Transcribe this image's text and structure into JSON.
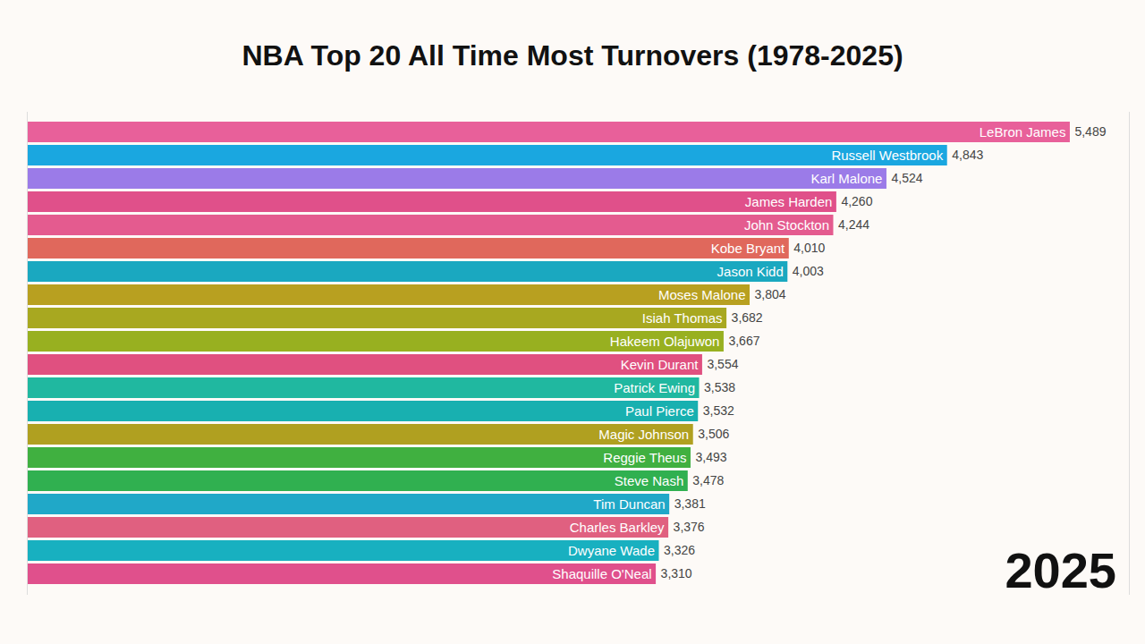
{
  "chart_data": {
    "type": "bar",
    "orientation": "horizontal",
    "title": "NBA Top 20 All Time Most Turnovers (1978-2025)",
    "annotations": [
      "2025"
    ],
    "categories": [
      "LeBron James",
      "Russell Westbrook",
      "Karl Malone",
      "James Harden",
      "John Stockton",
      "Kobe Bryant",
      "Jason Kidd",
      "Moses Malone",
      "Isiah Thomas",
      "Hakeem Olajuwon",
      "Kevin Durant",
      "Patrick Ewing",
      "Paul Pierce",
      "Magic Johnson",
      "Reggie Theus",
      "Steve Nash",
      "Tim Duncan",
      "Charles Barkley",
      "Dwyane Wade",
      "Shaquille O'Neal"
    ],
    "values": [
      5489,
      4843,
      4524,
      4260,
      4244,
      4010,
      4003,
      3804,
      3682,
      3667,
      3554,
      3538,
      3532,
      3506,
      3493,
      3478,
      3381,
      3376,
      3326,
      3310
    ],
    "value_labels": [
      "5,489",
      "4,843",
      "4,524",
      "4,260",
      "4,244",
      "4,010",
      "4,003",
      "3,804",
      "3,682",
      "3,667",
      "3,554",
      "3,538",
      "3,532",
      "3,506",
      "3,493",
      "3,478",
      "3,381",
      "3,376",
      "3,326",
      "3,310"
    ],
    "colors": [
      "#e8609a",
      "#1aa7e0",
      "#9b7be8",
      "#e0508a",
      "#e45b8f",
      "#e0685c",
      "#1aa8c0",
      "#b8a020",
      "#a8a820",
      "#98b020",
      "#e05080",
      "#20b8a0",
      "#18b0b0",
      "#b0a020",
      "#40b040",
      "#30b050",
      "#20a8c8",
      "#e06080",
      "#18b0c0",
      "#e0508c"
    ],
    "xlim": [
      0,
      5800
    ],
    "tick_labels": false,
    "data_labels": true
  }
}
